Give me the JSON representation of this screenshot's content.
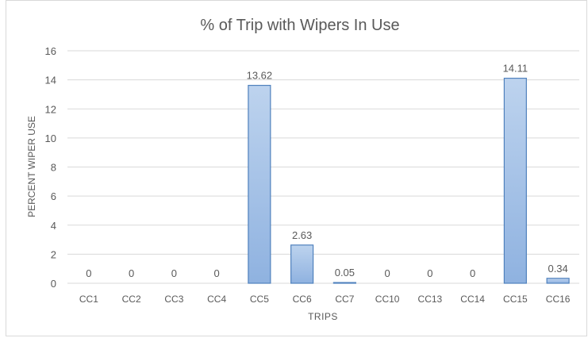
{
  "chart_data": {
    "type": "bar",
    "title": "% of Trip with Wipers In Use",
    "xlabel": "TRIPS",
    "ylabel": "PERCENT WIPER USE",
    "categories": [
      "CC1",
      "CC2",
      "CC3",
      "CC4",
      "CC5",
      "CC6",
      "CC7",
      "CC10",
      "CC13",
      "CC14",
      "CC15",
      "CC16"
    ],
    "values": [
      0,
      0,
      0,
      0,
      13.62,
      2.63,
      0.05,
      0,
      0,
      0,
      14.11,
      0.34
    ],
    "data_labels": [
      "0",
      "0",
      "0",
      "0",
      "13.62",
      "2.63",
      "0.05",
      "0",
      "0",
      "0",
      "14.11",
      "0.34"
    ],
    "ylim": [
      0,
      16
    ],
    "yticks": [
      0,
      2,
      4,
      6,
      8,
      10,
      12,
      14,
      16
    ],
    "grid": true,
    "legend": "none",
    "colors": {
      "bar_top": "#bdd3ee",
      "bar_bottom": "#8fb2e0",
      "bar_stroke": "#4f81bd",
      "grid": "#d9d9d9",
      "text": "#595959",
      "title": "#595959"
    }
  }
}
